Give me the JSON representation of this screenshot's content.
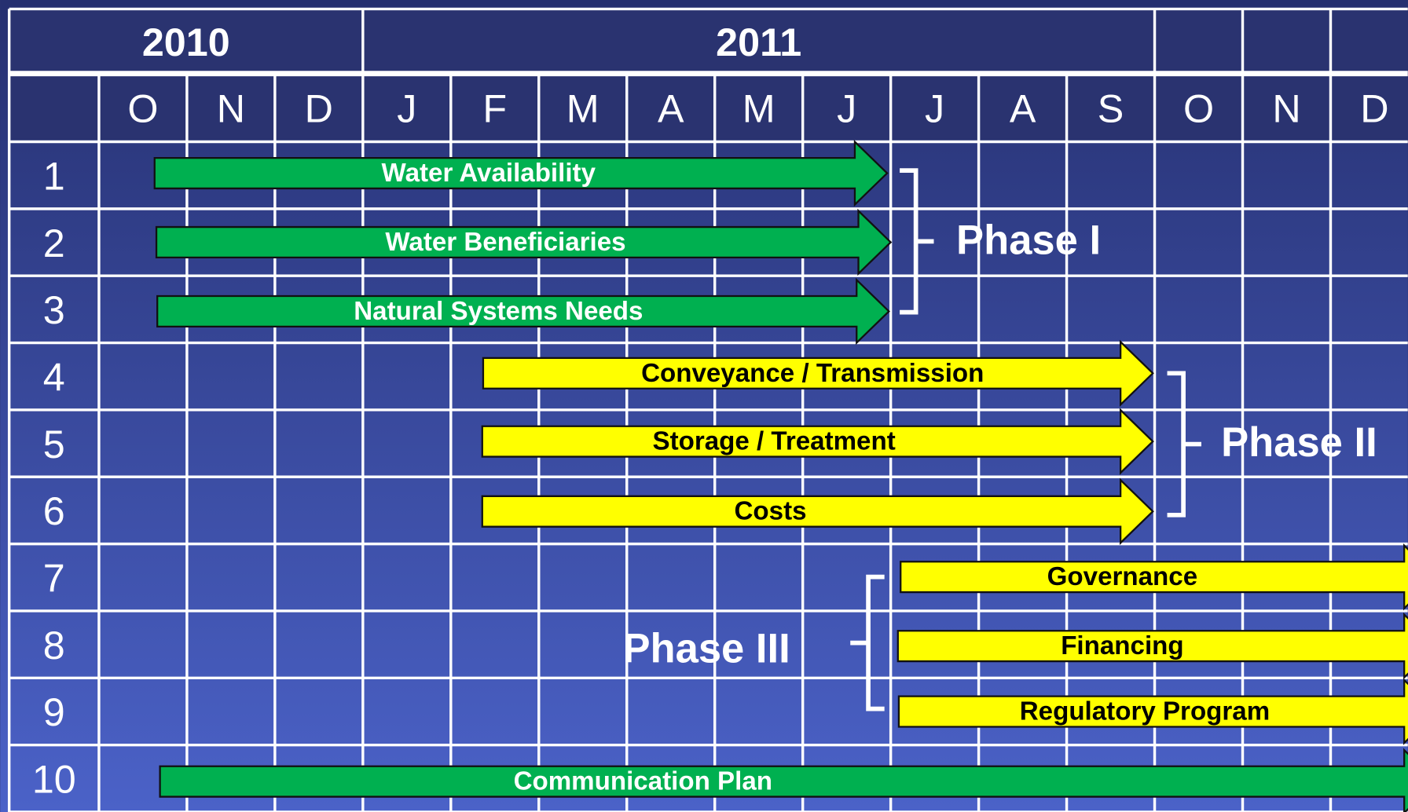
{
  "years": [
    "2010",
    "2011"
  ],
  "months": [
    "O",
    "N",
    "D",
    "J",
    "F",
    "M",
    "A",
    "M",
    "J",
    "J",
    "A",
    "S",
    "O",
    "N",
    "D"
  ],
  "rows": [
    "1",
    "2",
    "3",
    "4",
    "5",
    "6",
    "7",
    "8",
    "9",
    "10"
  ],
  "tasks": [
    {
      "label": "Water Availability"
    },
    {
      "label": "Water Beneficiaries"
    },
    {
      "label": "Natural Systems Needs"
    },
    {
      "label": "Conveyance / Transmission"
    },
    {
      "label": "Storage / Treatment"
    },
    {
      "label": "Costs"
    },
    {
      "label": "Governance"
    },
    {
      "label": "Financing"
    },
    {
      "label": "Regulatory Program"
    },
    {
      "label": "Communication Plan"
    }
  ],
  "phases": [
    {
      "label": "Phase I"
    },
    {
      "label": "Phase II"
    },
    {
      "label": "Phase III"
    }
  ]
}
